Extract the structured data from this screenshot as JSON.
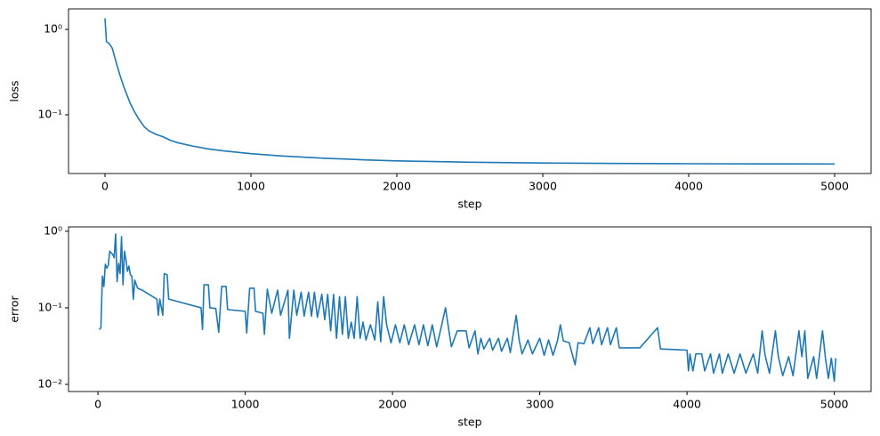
{
  "chart_data": [
    {
      "type": "line",
      "xlabel": "step",
      "ylabel": "loss",
      "logy": true,
      "color": "#1f77b4",
      "xlim": [
        -250,
        5250
      ],
      "ylim": [
        0.0205,
        1.74
      ],
      "xticks": [
        0,
        1000,
        2000,
        3000,
        4000,
        5000
      ],
      "yticks": [
        {
          "value": 0.1,
          "label": "10⁻¹"
        },
        {
          "value": 1,
          "label": "10⁰"
        }
      ],
      "x": [
        0,
        10,
        30,
        50,
        70,
        100,
        130,
        170,
        200,
        230,
        270,
        300,
        350,
        400,
        450,
        500,
        600,
        700,
        800,
        1000,
        1200,
        1500,
        1800,
        2000,
        2500,
        3000,
        3500,
        4000,
        4500,
        5000
      ],
      "values": [
        1.35,
        0.72,
        0.68,
        0.6,
        0.45,
        0.3,
        0.21,
        0.14,
        0.11,
        0.09,
        0.072,
        0.065,
        0.059,
        0.055,
        0.05,
        0.047,
        0.043,
        0.04,
        0.038,
        0.035,
        0.033,
        0.031,
        0.0295,
        0.0288,
        0.0278,
        0.0272,
        0.0269,
        0.0267,
        0.0266,
        0.0265
      ]
    },
    {
      "type": "line",
      "xlabel": "step",
      "ylabel": "error",
      "logy": true,
      "color": "#1f77b4",
      "xlim": [
        -200,
        5250
      ],
      "ylim": [
        0.00807,
        1.14
      ],
      "xticks": [
        0,
        1000,
        2000,
        3000,
        4000,
        5000
      ],
      "yticks": [
        {
          "value": 0.01,
          "label": "10⁻²"
        },
        {
          "value": 0.1,
          "label": "10⁻¹"
        },
        {
          "value": 1,
          "label": "10⁰"
        }
      ],
      "x": [
        10,
        20,
        30,
        40,
        50,
        60,
        70,
        80,
        90,
        100,
        110,
        120,
        130,
        140,
        150,
        160,
        170,
        180,
        190,
        200,
        210,
        220,
        230,
        240,
        250,
        260,
        270,
        300,
        400,
        410,
        420,
        440,
        450,
        470,
        480,
        700,
        710,
        720,
        750,
        760,
        800,
        820,
        840,
        870,
        880,
        1000,
        1010,
        1030,
        1060,
        1070,
        1120,
        1130,
        1150,
        1180,
        1220,
        1240,
        1290,
        1300,
        1330,
        1350,
        1380,
        1400,
        1430,
        1450,
        1470,
        1490,
        1520,
        1540,
        1560,
        1580,
        1600,
        1620,
        1640,
        1660,
        1680,
        1700,
        1720,
        1740,
        1760,
        1780,
        1800,
        1820,
        1850,
        1880,
        1900,
        1920,
        1940,
        1960,
        1990,
        2020,
        2050,
        2080,
        2110,
        2150,
        2180,
        2210,
        2240,
        2270,
        2300,
        2330,
        2360,
        2380,
        2400,
        2440,
        2500,
        2520,
        2560,
        2580,
        2600,
        2620,
        2660,
        2680,
        2720,
        2740,
        2780,
        2800,
        2840,
        2860,
        2880,
        2920,
        2950,
        3000,
        3030,
        3060,
        3090,
        3120,
        3140,
        3160,
        3200,
        3240,
        3260,
        3300,
        3340,
        3360,
        3400,
        3420,
        3460,
        3480,
        3520,
        3540,
        3600,
        3680,
        3800,
        3820,
        4000,
        4010,
        4020,
        4040,
        4060,
        4100,
        4120,
        4160,
        4180,
        4220,
        4240,
        4280,
        4320,
        4360,
        4400,
        4450,
        4480,
        4510,
        4530,
        4560,
        4600,
        4620,
        4650,
        4690,
        4720,
        4760,
        4780,
        4800,
        4820,
        4860,
        4880,
        4920,
        4940,
        4960,
        4980,
        5000,
        5010
      ],
      "values": [
        0.052,
        0.055,
        0.26,
        0.19,
        0.37,
        0.33,
        0.36,
        0.55,
        0.52,
        0.5,
        0.45,
        0.92,
        0.22,
        0.38,
        0.28,
        0.85,
        0.2,
        0.55,
        0.42,
        0.3,
        0.35,
        0.27,
        0.26,
        0.13,
        0.23,
        0.2,
        0.18,
        0.17,
        0.13,
        0.08,
        0.13,
        0.08,
        0.28,
        0.27,
        0.13,
        0.1,
        0.052,
        0.2,
        0.2,
        0.1,
        0.098,
        0.048,
        0.19,
        0.19,
        0.095,
        0.09,
        0.047,
        0.18,
        0.18,
        0.09,
        0.085,
        0.045,
        0.175,
        0.085,
        0.17,
        0.08,
        0.17,
        0.04,
        0.17,
        0.08,
        0.16,
        0.078,
        0.16,
        0.078,
        0.16,
        0.075,
        0.15,
        0.07,
        0.15,
        0.05,
        0.15,
        0.04,
        0.14,
        0.045,
        0.14,
        0.04,
        0.065,
        0.04,
        0.14,
        0.04,
        0.065,
        0.038,
        0.06,
        0.038,
        0.12,
        0.036,
        0.14,
        0.06,
        0.035,
        0.06,
        0.035,
        0.06,
        0.033,
        0.06,
        0.033,
        0.06,
        0.032,
        0.06,
        0.031,
        0.055,
        0.1,
        0.055,
        0.031,
        0.05,
        0.05,
        0.03,
        0.05,
        0.025,
        0.04,
        0.029,
        0.04,
        0.028,
        0.04,
        0.027,
        0.04,
        0.026,
        0.08,
        0.038,
        0.025,
        0.038,
        0.025,
        0.04,
        0.024,
        0.038,
        0.024,
        0.037,
        0.06,
        0.037,
        0.035,
        0.018,
        0.035,
        0.034,
        0.055,
        0.034,
        0.055,
        0.033,
        0.055,
        0.033,
        0.055,
        0.03,
        0.03,
        0.03,
        0.055,
        0.029,
        0.028,
        0.015,
        0.025,
        0.015,
        0.025,
        0.025,
        0.015,
        0.025,
        0.014,
        0.025,
        0.014,
        0.025,
        0.014,
        0.025,
        0.014,
        0.025,
        0.014,
        0.05,
        0.024,
        0.014,
        0.05,
        0.023,
        0.013,
        0.023,
        0.013,
        0.05,
        0.023,
        0.05,
        0.012,
        0.023,
        0.012,
        0.05,
        0.022,
        0.012,
        0.022,
        0.011,
        0.022
      ]
    }
  ]
}
